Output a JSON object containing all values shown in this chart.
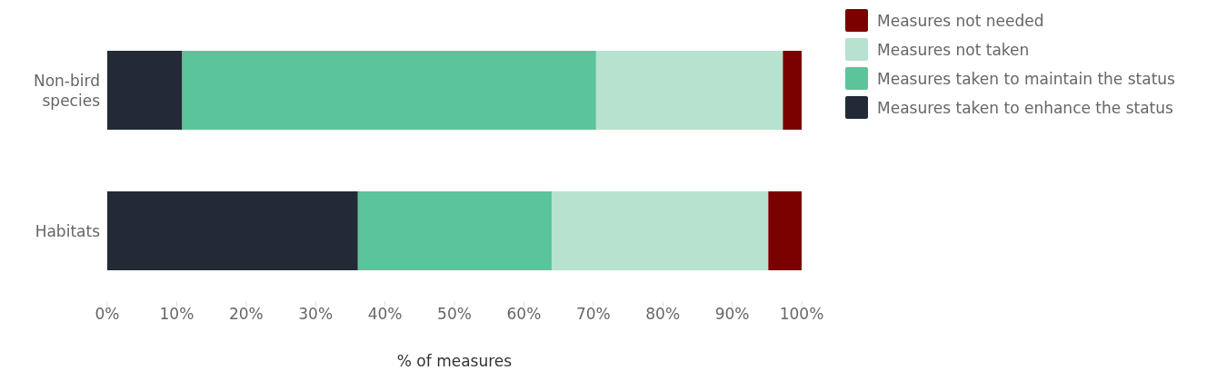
{
  "chart_data": {
    "type": "bar",
    "orientation": "horizontal",
    "stacked": true,
    "xlabel": "% of measures",
    "categories": [
      "Non-bird species",
      "Habitats"
    ],
    "series": [
      {
        "name": "Measures taken to enhance the status",
        "color": "#232a35",
        "values": [
          10.8,
          36.1
        ]
      },
      {
        "name": "Measures taken to maintain the status",
        "color": "#5bc49a",
        "values": [
          59.6,
          27.9
        ]
      },
      {
        "name": "Measures not taken",
        "color": "#b7e2cf",
        "values": [
          26.9,
          31.2
        ]
      },
      {
        "name": "Measures not needed",
        "color": "#7b0000",
        "values": [
          2.7,
          4.8
        ]
      }
    ],
    "xlim": [
      0,
      100
    ],
    "xticks": [
      {
        "value": 0,
        "label": "0%"
      },
      {
        "value": 10,
        "label": "10%"
      },
      {
        "value": 20,
        "label": "20%"
      },
      {
        "value": 30,
        "label": "30%"
      },
      {
        "value": 40,
        "label": "40%"
      },
      {
        "value": 50,
        "label": "50%"
      },
      {
        "value": 60,
        "label": "60%"
      },
      {
        "value": 70,
        "label": "70%"
      },
      {
        "value": 80,
        "label": "80%"
      },
      {
        "value": 90,
        "label": "90%"
      },
      {
        "value": 100,
        "label": "100%"
      }
    ],
    "grid": false,
    "legend": "top right"
  }
}
